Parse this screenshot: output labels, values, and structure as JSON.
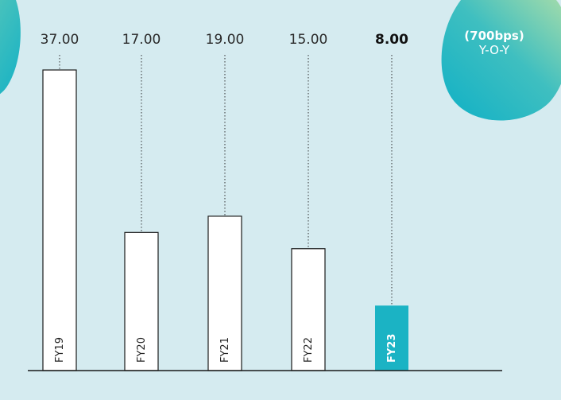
{
  "chart_data": {
    "type": "bar",
    "categories": [
      "FY19",
      "FY20",
      "FY21",
      "FY22",
      "FY23"
    ],
    "values": [
      37.0,
      17.0,
      19.0,
      15.0,
      8.0
    ],
    "value_labels": [
      "37.00",
      "17.00",
      "19.00",
      "15.00",
      "8.00"
    ],
    "highlight_index": 4,
    "title": "",
    "xlabel": "",
    "ylabel": "",
    "grid": false
  },
  "callout": {
    "change": "(700bps)",
    "period": "Y-O-Y"
  },
  "colors": {
    "background": "#d5ebf0",
    "bar": "#ffffff",
    "bar_stroke": "#1a1a1a",
    "highlight_bar": "#1bb3c4",
    "blob_start": "#1ab8c8",
    "blob_end": "#9ed8a8"
  }
}
